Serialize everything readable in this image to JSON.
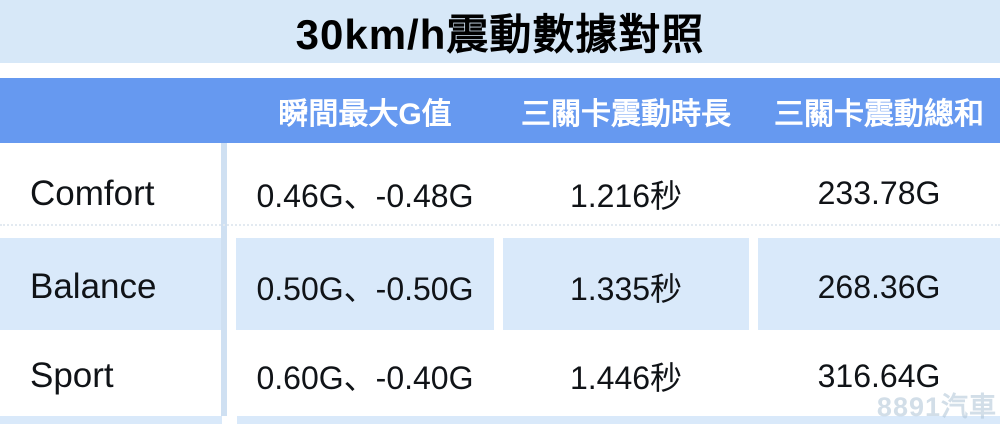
{
  "title": "30km/h震動數據對照",
  "watermark": "8891汽車",
  "colors": {
    "title_band_bg": "#d7e8f8",
    "header_bg": "#6699f0",
    "header_text": "#ffffff",
    "alt_row_bg": "#d9e9fa",
    "divider_line": "#cfe0f2",
    "body_text": "#101317",
    "watermark_text": "#adc2d6"
  },
  "chart_data": {
    "type": "table",
    "title": "30km/h震動數據對照",
    "columns": [
      "",
      "瞬間最大G值",
      "三關卡震動時長",
      "三關卡震動總和"
    ],
    "rows": [
      [
        "Comfort",
        "0.46G、-0.48G",
        "1.216秒",
        "233.78G"
      ],
      [
        "Balance",
        "0.50G、-0.50G",
        "1.335秒",
        "268.36G"
      ],
      [
        "Sport",
        "0.60G、-0.40G",
        "1.446秒",
        "316.64G"
      ]
    ],
    "numeric": {
      "modes": [
        "Comfort",
        "Balance",
        "Sport"
      ],
      "instant_max_g_positive": [
        0.46,
        0.5,
        0.6
      ],
      "instant_max_g_negative": [
        -0.48,
        -0.5,
        -0.4
      ],
      "vibration_duration_sec": [
        1.216,
        1.335,
        1.446
      ],
      "vibration_total_g": [
        233.78,
        268.36,
        316.64
      ]
    }
  }
}
